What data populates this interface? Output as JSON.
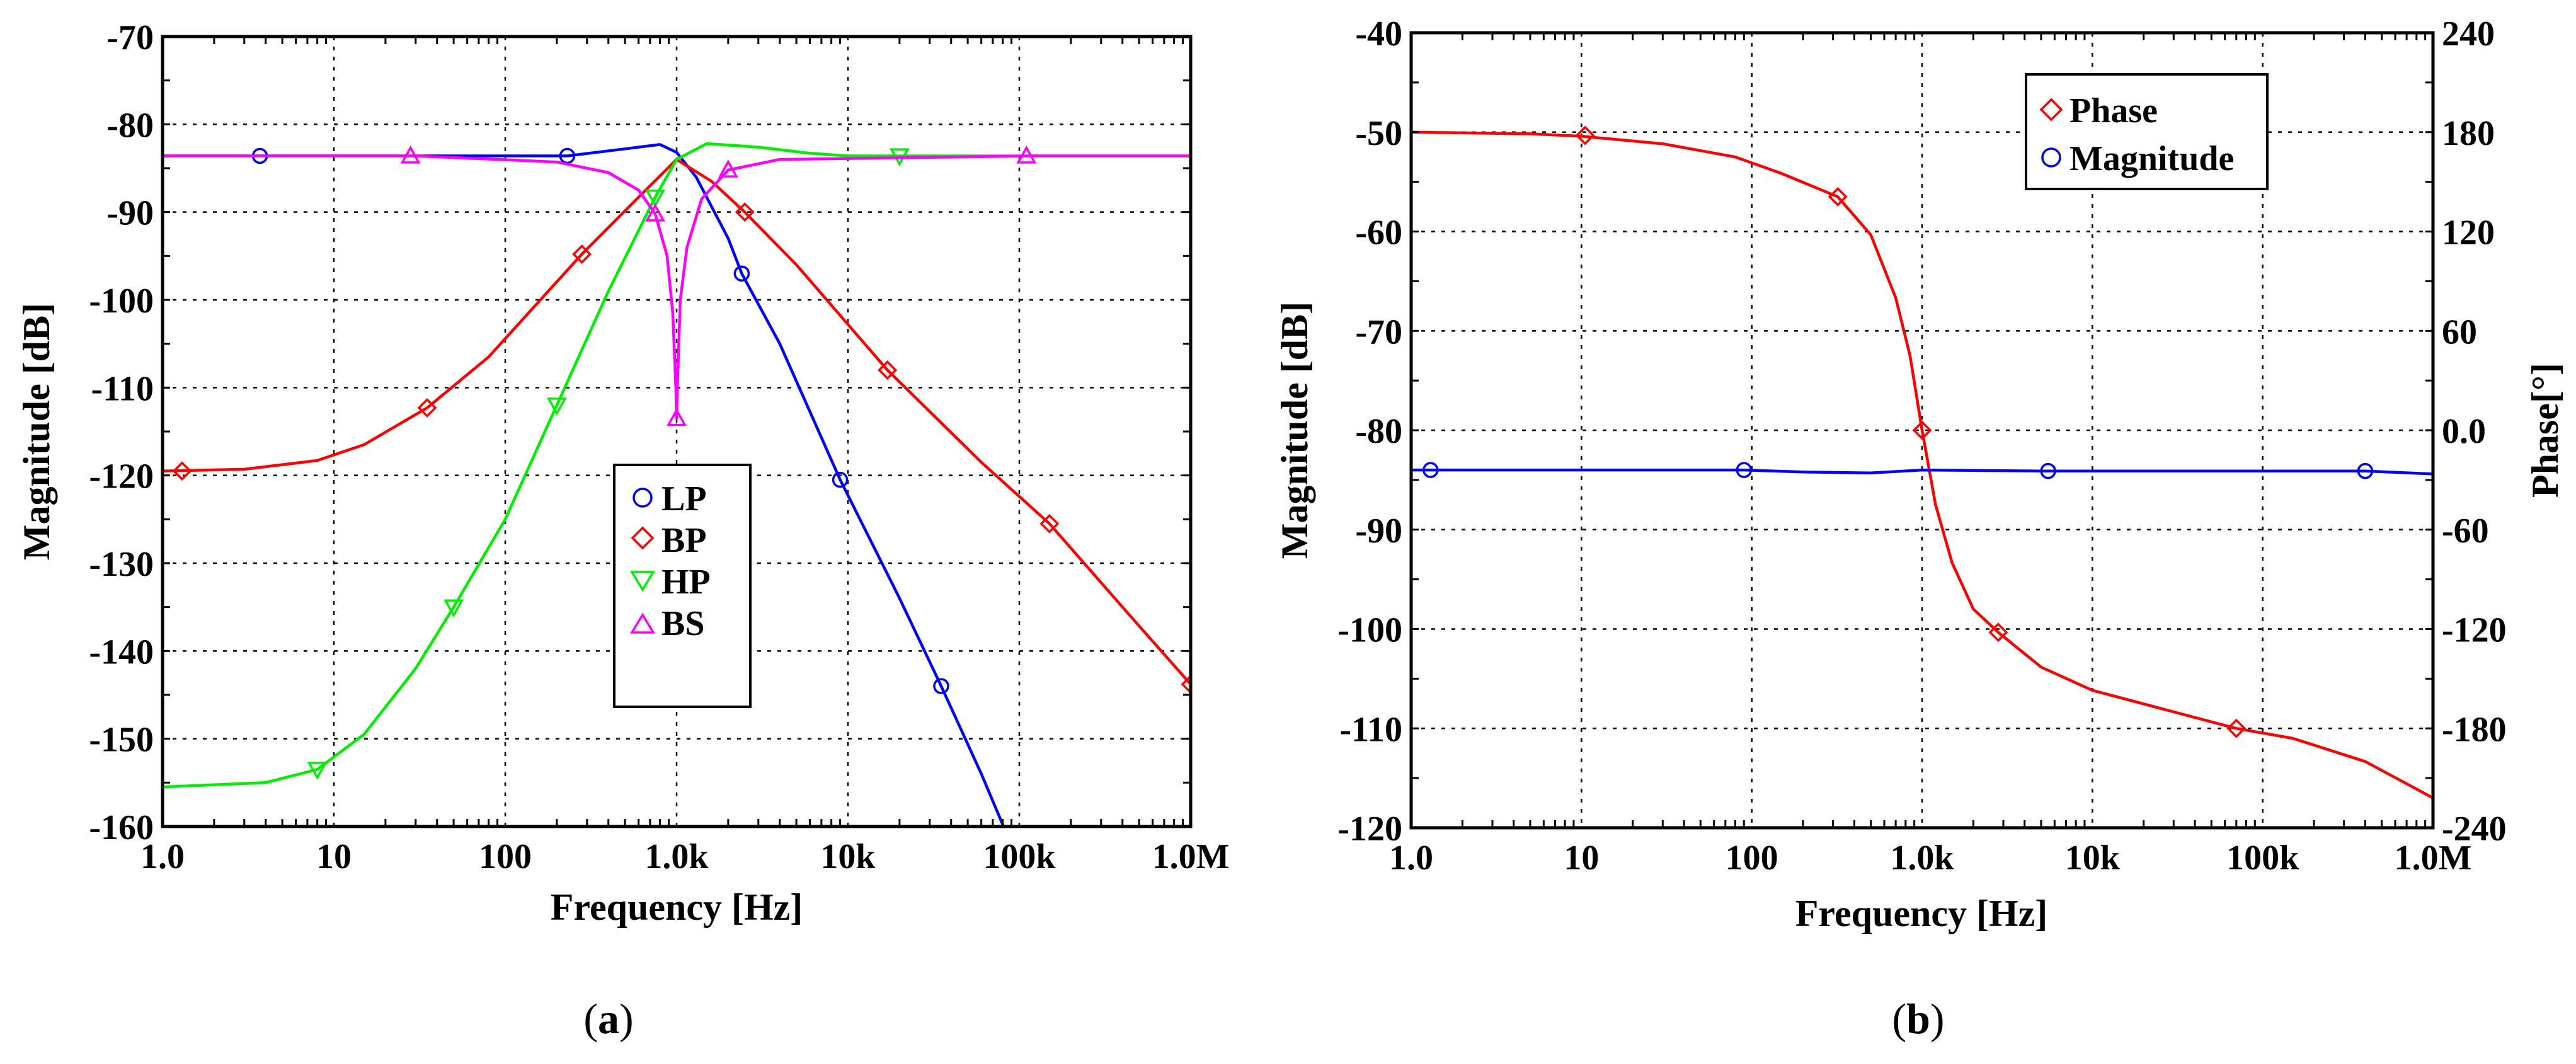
{
  "chart_data": [
    {
      "id": "a",
      "type": "line",
      "caption": "(a)",
      "caption_letter": "a",
      "xlabel": "Frequency [Hz]",
      "ylabel": "Magnitude [dB]",
      "xscale": "log",
      "xlim": [
        1,
        1000000
      ],
      "ylim": [
        -160,
        -70
      ],
      "xtick_values": [
        1,
        10,
        100,
        1000,
        10000,
        100000,
        1000000
      ],
      "xtick_labels": [
        "1.0",
        "10",
        "100",
        "1.0k",
        "10k",
        "100k",
        "1.0M"
      ],
      "ytick_values": [
        -70,
        -80,
        -90,
        -100,
        -110,
        -120,
        -130,
        -140,
        -150,
        -160
      ],
      "ytick_labels": [
        "-70",
        "-80",
        "-90",
        "-100",
        "-110",
        "-120",
        "-130",
        "-140",
        "-150",
        "-160"
      ],
      "grid": true,
      "legend_position": "lower-center",
      "series": [
        {
          "name": "LP",
          "color": "#0000ff",
          "marker": "circle",
          "x": [
            1,
            3.7,
            30,
            230,
            500,
            800,
            1000,
            1300,
            2000,
            2400,
            4000,
            9000,
            20000,
            35000,
            60000,
            85000
          ],
          "y": [
            -83.6,
            -83.6,
            -83.6,
            -83.6,
            -82.8,
            -82.3,
            -83.2,
            -86,
            -93,
            -97,
            -105,
            -120.5,
            -134,
            -144,
            -154,
            -161
          ],
          "marker_x": [
            3.7,
            230,
            2400,
            9000,
            35000
          ],
          "marker_y": [
            -83.6,
            -83.6,
            -97,
            -120.5,
            -144
          ]
        },
        {
          "name": "BP",
          "color": "#ff0000",
          "marker": "diamond",
          "x": [
            1,
            3,
            8,
            15,
            35,
            80,
            280,
            600,
            1000,
            1600,
            2500,
            5000,
            17000,
            60000,
            150000,
            400000,
            1000000
          ],
          "y": [
            -119.5,
            -119.3,
            -118.3,
            -116.5,
            -112.3,
            -106.5,
            -94.8,
            -88.3,
            -84,
            -86.5,
            -90,
            -96,
            -108,
            -118.5,
            -125.5,
            -135,
            -143.8
          ],
          "marker_x": [
            1.3,
            35,
            280,
            2500,
            17000,
            150000,
            1000000
          ],
          "marker_y": [
            -119.5,
            -112.3,
            -94.8,
            -90,
            -108,
            -125.5,
            -143.8
          ]
        },
        {
          "name": "HP",
          "color": "#00ee00",
          "marker": "triangle-down",
          "x": [
            1,
            4,
            8,
            15,
            30,
            50,
            100,
            200,
            400,
            750,
            1000,
            1500,
            3000,
            6000,
            10000,
            30000,
            1000000
          ],
          "y": [
            -155.5,
            -155,
            -153.5,
            -149.5,
            -142,
            -135,
            -125,
            -112,
            -99,
            -88.3,
            -84,
            -82.2,
            -82.6,
            -83.3,
            -83.6,
            -83.6,
            -83.6
          ],
          "marker_x": [
            8,
            50,
            200,
            750,
            20000
          ],
          "marker_y": [
            -153.5,
            -135,
            -112,
            -88.3,
            -83.6
          ]
        },
        {
          "name": "BS",
          "color": "#ff00ff",
          "marker": "triangle-up",
          "x": [
            1,
            30,
            200,
            400,
            600,
            750,
            880,
            950,
            990,
            1000,
            1010,
            1050,
            1150,
            1400,
            2000,
            4000,
            120000,
            1000000
          ],
          "y": [
            -83.6,
            -83.6,
            -84.3,
            -85.5,
            -87.5,
            -90.2,
            -95,
            -101.5,
            -110,
            -113.5,
            -110,
            -100,
            -94,
            -88.5,
            -85.2,
            -84,
            -83.6,
            -83.6
          ],
          "marker_x": [
            28,
            750,
            1000,
            2000,
            110000
          ],
          "marker_y": [
            -83.6,
            -90.2,
            -113.5,
            -85.2,
            -83.6
          ]
        }
      ]
    },
    {
      "id": "b",
      "type": "line",
      "caption": "(b)",
      "caption_letter": "b",
      "xlabel": "Frequency [Hz]",
      "ylabel": "Magnitude [dB]",
      "y2label": "Phase[°]",
      "xscale": "log",
      "xlim": [
        1,
        1000000
      ],
      "ylim": [
        -120,
        -40
      ],
      "y2lim": [
        -240,
        240
      ],
      "xtick_values": [
        1,
        10,
        100,
        1000,
        10000,
        100000,
        1000000
      ],
      "xtick_labels": [
        "1.0",
        "10",
        "100",
        "1.0k",
        "10k",
        "100k",
        "1.0M"
      ],
      "ytick_values": [
        -40,
        -50,
        -60,
        -70,
        -80,
        -90,
        -100,
        -110,
        -120
      ],
      "ytick_labels": [
        "-40",
        "-50",
        "-60",
        "-70",
        "-80",
        "-90",
        "-100",
        "-110",
        "-120"
      ],
      "y2tick_values": [
        240,
        180,
        120,
        60,
        0,
        -60,
        -120,
        -180,
        -240
      ],
      "y2tick_labels": [
        "240",
        "180",
        "120",
        "60",
        "0.0",
        "-60",
        "-120",
        "-180",
        "-240"
      ],
      "grid": true,
      "legend_position": "top-center",
      "series": [
        {
          "name": "Phase",
          "color": "#ff0000",
          "marker": "diamond",
          "axis": "right",
          "x": [
            1,
            5,
            10,
            30,
            80,
            150,
            320,
            500,
            700,
            850,
            1000,
            1200,
            1500,
            2000,
            2800,
            5000,
            10000,
            30000,
            70000,
            150000,
            400000,
            1000000
          ],
          "y": [
            180,
            179,
            177.5,
            173,
            165,
            155,
            141,
            118,
            80,
            45,
            0,
            -45,
            -80,
            -108,
            -122,
            -143,
            -157,
            -170,
            -180,
            -186,
            -200,
            -222
          ],
          "marker_x": [
            10.5,
            320,
            1000,
            2800,
            70000
          ],
          "marker_y": [
            178,
            141,
            0,
            -122,
            -180
          ]
        },
        {
          "name": "Magnitude",
          "color": "#0000ff",
          "marker": "circle",
          "axis": "left",
          "x": [
            1,
            10,
            90,
            200,
            500,
            1000,
            5000,
            50000,
            400000,
            1000000
          ],
          "y": [
            -84,
            -84,
            -84,
            -84.2,
            -84.3,
            -84,
            -84.1,
            -84.1,
            -84.1,
            -84.4
          ],
          "marker_x": [
            1.3,
            90,
            5500,
            400000
          ],
          "marker_y": [
            -84,
            -84,
            -84.1,
            -84.1
          ]
        }
      ]
    }
  ]
}
